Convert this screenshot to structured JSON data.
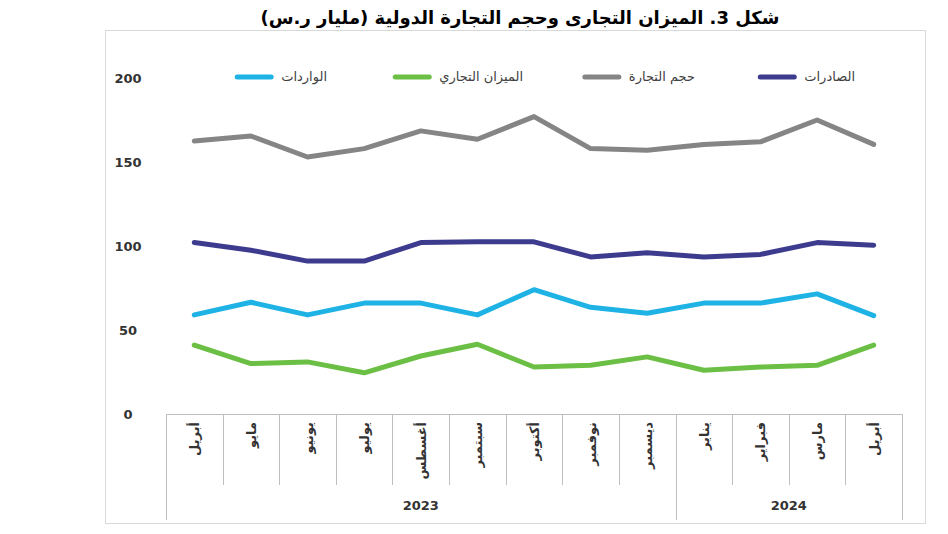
{
  "chart_data": {
    "type": "line",
    "title": "شكل 3. الميزان التجارى وحجم التجارة الدولية (مليار ر.س)",
    "categories": [
      "أبريل",
      "مايو",
      "يونيو",
      "يوليو",
      "أغسطس",
      "سبتمبر",
      "أكتوبر",
      "نوفمبر",
      "ديسمبر",
      "يناير",
      "فبراير",
      "مارس",
      "أبريل"
    ],
    "category_groups": [
      {
        "label": "2023",
        "count": 9
      },
      {
        "label": "2024",
        "count": 4
      }
    ],
    "series": [
      {
        "name": "الصادرات",
        "color": "#3d3b8e",
        "values": [
          102,
          97.5,
          91,
          91,
          102,
          102.5,
          102.5,
          93.5,
          96,
          93.5,
          95,
          102,
          100.5
        ]
      },
      {
        "name": "حجم التجارة",
        "color": "#858585",
        "values": [
          162.5,
          165.5,
          153,
          158,
          168.5,
          163.5,
          177,
          158,
          157,
          160.5,
          162,
          175,
          160.5
        ]
      },
      {
        "name": "الميزان التجاري",
        "color": "#6cbf45",
        "values": [
          41,
          30,
          31,
          24.5,
          34.5,
          41.5,
          28,
          29,
          34,
          26,
          28,
          29,
          41
        ]
      },
      {
        "name": "الواردات",
        "color": "#1fb3e5",
        "values": [
          59,
          66.5,
          59,
          66,
          66,
          59,
          74,
          63.5,
          60,
          66,
          66,
          71.5,
          58.5
        ]
      }
    ],
    "ylim": [
      0,
      200
    ],
    "yticks": [
      0,
      50,
      100,
      150,
      200
    ],
    "grid": false,
    "legend": "top"
  }
}
